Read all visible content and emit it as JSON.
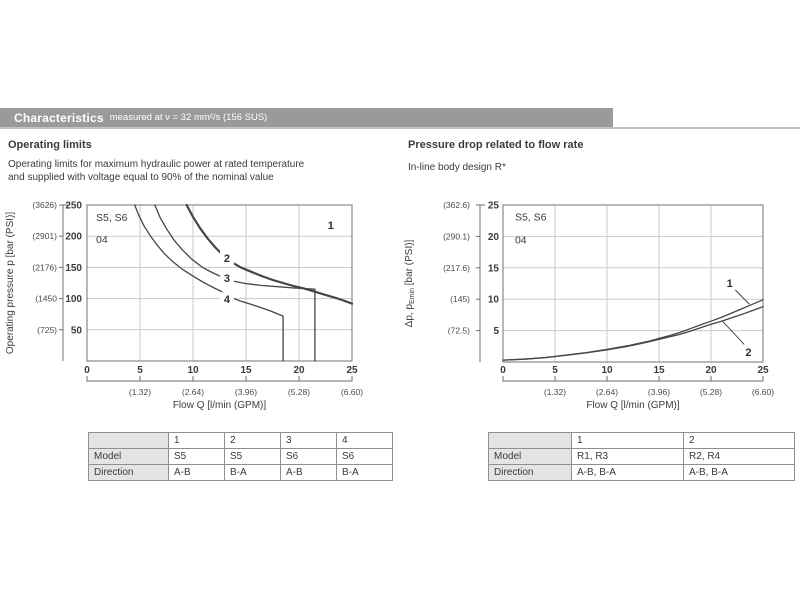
{
  "header": {
    "title": "Characteristics",
    "subtitle": "measured at ν = 32 mm²/s (156 SUS)",
    "bar_color": "#9a9a9a",
    "rule_color": "#c3c3c3"
  },
  "sections": {
    "left": {
      "heading": "Operating limits",
      "desc_line1": "Operating limits for maximum hydraulic power at rated temperature",
      "desc_line2": "and supplied with voltage equal to 90% of the nominal value"
    },
    "right": {
      "heading": "Pressure drop related to flow rate",
      "desc": "In-line body design R*"
    }
  },
  "chart_data": [
    {
      "id": "operating-limits",
      "type": "line",
      "title": "Operating limits",
      "xlabel": "Flow Q [l/min (GPM)]",
      "ylabel": "Operating pressure p [bar (PSI)]",
      "ylabel_parts": [
        {
          "t": "Operating pressure p [bar (PSI)]"
        }
      ],
      "xlim": [
        0,
        25
      ],
      "ylim": [
        0,
        250
      ],
      "grid": true,
      "x_ticks": [
        0,
        5,
        10,
        15,
        20,
        25
      ],
      "x_ticks_secondary_gpm": [
        "(1.32)",
        "(2.64)",
        "(3.96)",
        "(5.28)",
        "(6.60)"
      ],
      "y_ticks": [
        50,
        100,
        150,
        200,
        250
      ],
      "y_ticks_secondary_psi": [
        "(725)",
        "(1450",
        "(2176)",
        "(2901)",
        "(3626)"
      ],
      "annotations": [
        {
          "text": "S5, S6",
          "x": 0.85,
          "y": 224
        },
        {
          "text": "04",
          "x": 0.85,
          "y": 189
        }
      ],
      "series": [
        {
          "name": "1",
          "points": [],
          "label": {
            "x": 23.0,
            "y": 218
          }
        },
        {
          "name": "2",
          "emphasis": true,
          "label": {
            "x": 13.2,
            "y": 165
          },
          "points": [
            [
              9.4,
              250
            ],
            [
              10,
              231
            ],
            [
              10.7,
              212
            ],
            [
              11.4,
              196
            ],
            [
              12.1,
              182
            ],
            [
              12.8,
              170
            ],
            [
              13.6,
              159
            ],
            [
              14.5,
              150
            ],
            [
              15.5,
              143
            ],
            [
              16.5,
              136
            ],
            [
              17.5,
              130
            ],
            [
              18.5,
              125
            ],
            [
              19.5,
              120
            ],
            [
              20.5,
              116
            ],
            [
              21.5,
              111
            ],
            [
              22.5,
              106
            ],
            [
              23.5,
              101
            ],
            [
              24.2,
              97
            ],
            [
              25,
              92
            ]
          ]
        },
        {
          "name": "3",
          "label": {
            "x": 13.2,
            "y": 133
          },
          "points": [
            [
              6.4,
              250
            ],
            [
              6.9,
              230
            ],
            [
              7.5,
              212
            ],
            [
              8.2,
              194
            ],
            [
              9,
              178
            ],
            [
              9.9,
              163
            ],
            [
              10.9,
              150
            ],
            [
              11.9,
              141
            ],
            [
              12.7,
              135
            ],
            [
              13.8,
              128
            ],
            [
              15,
              124
            ],
            [
              16.5,
              121
            ],
            [
              18,
              119
            ],
            [
              19.5,
              117
            ],
            [
              21.5,
              115
            ],
            [
              21.5,
              0
            ]
          ]
        },
        {
          "name": "4",
          "label": {
            "x": 13.2,
            "y": 99
          },
          "points": [
            [
              4.5,
              250
            ],
            [
              4.9,
              233
            ],
            [
              5.4,
              216
            ],
            [
              6,
              200
            ],
            [
              6.6,
              186
            ],
            [
              7.3,
              172
            ],
            [
              8.1,
              159
            ],
            [
              9,
              147
            ],
            [
              10,
              136
            ],
            [
              11,
              126
            ],
            [
              12,
              117
            ],
            [
              12.6,
              112
            ],
            [
              13.4,
              103
            ],
            [
              14.5,
              96
            ],
            [
              16,
              88
            ],
            [
              17.2,
              81
            ],
            [
              18.5,
              72
            ],
            [
              18.5,
              0
            ]
          ]
        }
      ]
    },
    {
      "id": "pressure-drop",
      "type": "line",
      "title": "Pressure drop related to flow rate",
      "xlabel": "Flow Q [l/min (GPM)]",
      "ylabel": "Δp, pEmin [bar (PSI)]",
      "ylabel_parts": [
        {
          "t": "Δp, p"
        },
        {
          "t": "Emin",
          "sub": true
        },
        {
          "t": " [bar (PSI)]"
        }
      ],
      "xlim": [
        0,
        25
      ],
      "ylim": [
        0,
        25
      ],
      "grid": true,
      "x_ticks": [
        0,
        5,
        10,
        15,
        20,
        25
      ],
      "x_ticks_secondary_gpm": [
        "(1.32)",
        "(2.64)",
        "(3.96)",
        "(5.28)",
        "(6.60)"
      ],
      "y_ticks": [
        5,
        10,
        15,
        20,
        25
      ],
      "y_ticks_secondary_psi": [
        "(72.5)",
        "(145)",
        "(217.6)",
        "(290.1)",
        "(362.6)"
      ],
      "annotations": [
        {
          "text": "S5, S6",
          "x": 1.15,
          "y": 22.5
        },
        {
          "text": "04",
          "x": 1.15,
          "y": 18.9
        }
      ],
      "series": [
        {
          "name": "1",
          "label": {
            "x": 21.8,
            "y": 12.6
          },
          "leader": {
            "from": [
              22.2,
              11.7
            ],
            "to": [
              23.7,
              9.2
            ]
          },
          "points": [
            [
              0,
              0.3
            ],
            [
              2,
              0.45
            ],
            [
              4,
              0.7
            ],
            [
              6,
              1.1
            ],
            [
              8,
              1.5
            ],
            [
              10,
              2.0
            ],
            [
              12,
              2.6
            ],
            [
              14,
              3.3
            ],
            [
              16,
              4.2
            ],
            [
              17,
              4.7
            ],
            [
              18,
              5.3
            ],
            [
              19,
              5.9
            ],
            [
              20,
              6.5
            ],
            [
              21,
              7.1
            ],
            [
              22,
              7.8
            ],
            [
              23,
              8.5
            ],
            [
              24,
              9.2
            ],
            [
              25,
              9.9
            ]
          ]
        },
        {
          "name": "2",
          "label": {
            "x": 23.6,
            "y": 1.6
          },
          "leader": {
            "from": [
              23.2,
              2.8
            ],
            "to": [
              21.1,
              6.5
            ]
          },
          "points": [
            [
              0,
              0.3
            ],
            [
              2,
              0.45
            ],
            [
              4,
              0.68
            ],
            [
              6,
              1.05
            ],
            [
              8,
              1.45
            ],
            [
              10,
              1.95
            ],
            [
              12,
              2.5
            ],
            [
              14,
              3.2
            ],
            [
              16,
              4.0
            ],
            [
              17,
              4.4
            ],
            [
              18,
              4.9
            ],
            [
              19,
              5.45
            ],
            [
              20,
              6.0
            ],
            [
              21,
              6.5
            ],
            [
              22,
              7.05
            ],
            [
              23,
              7.6
            ],
            [
              24,
              8.2
            ],
            [
              25,
              8.8
            ]
          ]
        }
      ]
    }
  ],
  "tables": [
    {
      "id": "operating-limits-table",
      "rows": [
        [
          "",
          "1",
          "2",
          "3",
          "4"
        ],
        [
          "Model",
          "S5",
          "S5",
          "S6",
          "S6"
        ],
        [
          "Direction",
          "A-B",
          "B-A",
          "A-B",
          "B-A"
        ]
      ]
    },
    {
      "id": "pressure-drop-table",
      "rows": [
        [
          "",
          "1",
          "2"
        ],
        [
          "Model",
          "R1, R3",
          "R2, R4"
        ],
        [
          "Direction",
          "A-B, B-A",
          "A-B, B-A"
        ]
      ]
    }
  ],
  "colors": {
    "curve": "#454545",
    "grid": "#c9c9c9",
    "plot_border": "#898989",
    "bracket": "#6e6e6e",
    "text": "#3b3b3b",
    "table_label_bg": "#e4e4e4",
    "table_border": "#8f8f8f"
  }
}
